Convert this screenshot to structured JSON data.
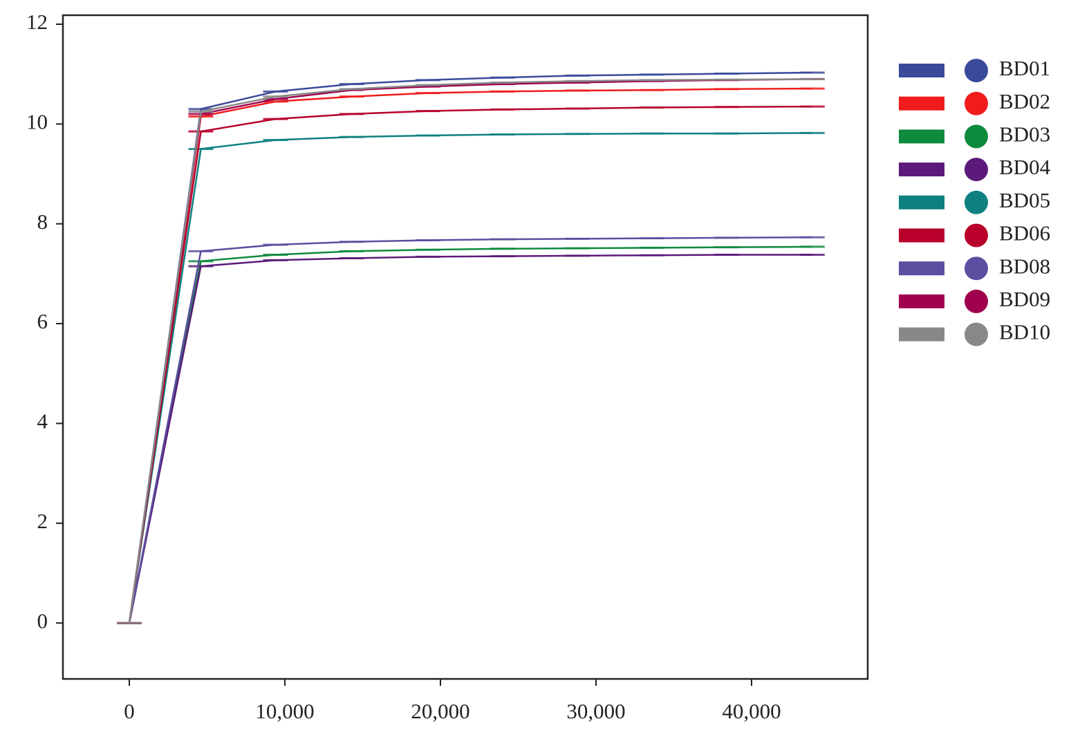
{
  "chart_data": {
    "type": "line",
    "x": [
      0,
      4600,
      9400,
      14300,
      19200,
      24000,
      28800,
      33600,
      38400,
      43900
    ],
    "xlim": [
      -4267,
      47467
    ],
    "xticks": [
      0,
      {
        "value": 10000,
        "label": "10,000"
      },
      {
        "value": 20000,
        "label": "20,000"
      },
      {
        "value": 30000,
        "label": "30,000"
      },
      {
        "value": 40000,
        "label": "40,000"
      }
    ],
    "ylim": [
      -1.12,
      12.18
    ],
    "yticks": [
      0,
      2,
      4,
      6,
      8,
      10,
      12
    ],
    "legend": "right",
    "series": [
      {
        "name": "BD01",
        "color": "#3a4a9a",
        "values": [
          0,
          10.3,
          10.65,
          10.8,
          10.88,
          10.93,
          10.97,
          10.99,
          11.01,
          11.03
        ]
      },
      {
        "name": "BD02",
        "color": "#f01c1c",
        "values": [
          0,
          10.15,
          10.45,
          10.55,
          10.62,
          10.65,
          10.67,
          10.68,
          10.7,
          10.71
        ]
      },
      {
        "name": "BD03",
        "color": "#0e8a3e",
        "values": [
          0,
          7.25,
          7.38,
          7.45,
          7.48,
          7.5,
          7.51,
          7.52,
          7.53,
          7.54
        ]
      },
      {
        "name": "BD04",
        "color": "#5c1a7a",
        "values": [
          0,
          7.15,
          7.27,
          7.31,
          7.34,
          7.35,
          7.36,
          7.37,
          7.38,
          7.38
        ]
      },
      {
        "name": "BD05",
        "color": "#0e8080",
        "values": [
          0,
          9.5,
          9.68,
          9.74,
          9.77,
          9.79,
          9.8,
          9.81,
          9.81,
          9.82
        ]
      },
      {
        "name": "BD06",
        "color": "#b8002a",
        "values": [
          0,
          9.85,
          10.1,
          10.2,
          10.26,
          10.29,
          10.31,
          10.33,
          10.34,
          10.35
        ]
      },
      {
        "name": "BD08",
        "color": "#5a4fa0",
        "values": [
          0,
          7.45,
          7.58,
          7.64,
          7.67,
          7.69,
          7.7,
          7.71,
          7.72,
          7.73
        ]
      },
      {
        "name": "BD09",
        "color": "#a0004e",
        "values": [
          0,
          10.2,
          10.5,
          10.68,
          10.75,
          10.8,
          10.83,
          10.86,
          10.88,
          10.9
        ]
      },
      {
        "name": "BD10",
        "color": "#888888",
        "values": [
          0,
          10.25,
          10.55,
          10.7,
          10.78,
          10.83,
          10.86,
          10.88,
          10.89,
          10.9
        ]
      }
    ]
  }
}
